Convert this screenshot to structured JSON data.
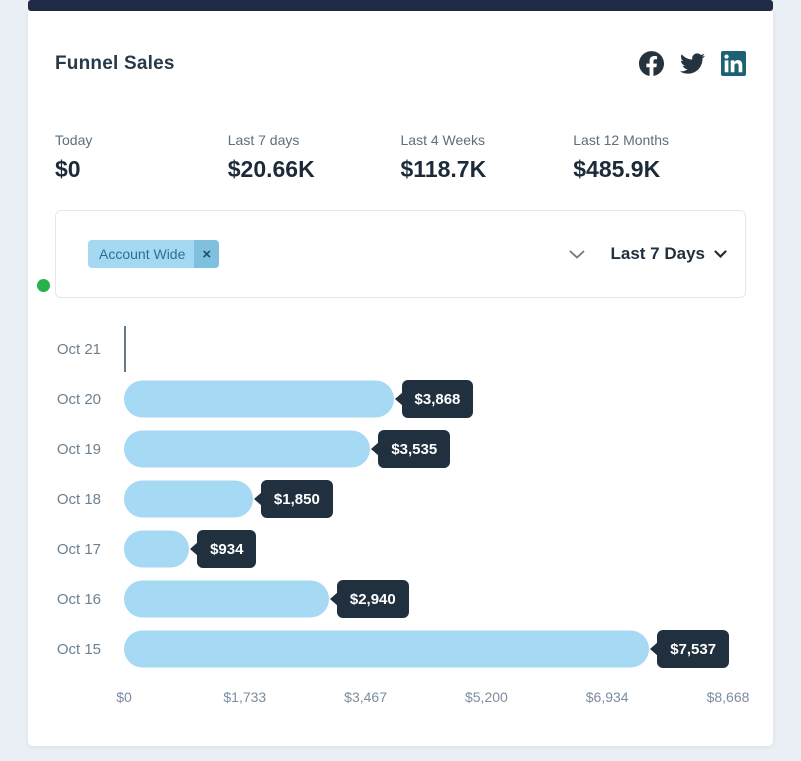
{
  "colors": {
    "page_bg": "#eaeff5",
    "card_bg": "#ffffff",
    "strip_navy": "#212b46",
    "title_text": "#263a4a",
    "stat_label": "#5d6e7e",
    "stat_value": "#1d2b39",
    "border": "#e3e8ee",
    "chip_bg": "#a5d9f1",
    "chip_text": "#2c6f96",
    "chip_remove_bg": "#7fc0de",
    "chip_remove_text": "#1d4f6e",
    "select_caret": "#6b7a8a",
    "range_text": "#22303e",
    "cat_label": "#6e8090",
    "axis_text": "#7b8da0",
    "axis_line": "#66788a",
    "bar_color": "#a6d9f3",
    "pill_bg": "#21303f",
    "pill_text": "#ffffff",
    "dot_green": "#28b14c",
    "icon_navy": "#25333f",
    "icon_linkedin": "#1d6173"
  },
  "header": {
    "title": "Funnel Sales",
    "icons": [
      "facebook-icon",
      "twitter-icon",
      "linkedin-icon"
    ]
  },
  "stats": [
    {
      "label": "Today",
      "value": "$0"
    },
    {
      "label": "Last 7 days",
      "value": "$20.66K"
    },
    {
      "label": "Last 4 Weeks",
      "value": "$118.7K"
    },
    {
      "label": "Last 12 Months",
      "value": "$485.9K"
    }
  ],
  "filters": {
    "chip_label": "Account Wide",
    "chip_remove": "×",
    "range_label": "Last 7 Days"
  },
  "chart_data": {
    "type": "bar",
    "orientation": "horizontal",
    "title": "Funnel Sales",
    "categories": [
      "Oct 21",
      "Oct 20",
      "Oct 19",
      "Oct 18",
      "Oct 17",
      "Oct 16",
      "Oct 15"
    ],
    "values": [
      0,
      3868,
      3535,
      1850,
      934,
      2940,
      7537
    ],
    "value_labels": [
      "",
      "$3,868",
      "$3,535",
      "$1,850",
      "$934",
      "$2,940",
      "$7,537"
    ],
    "x_ticks": [
      "$0",
      "$1,733",
      "$3,467",
      "$5,200",
      "$6,934",
      "$8,668"
    ],
    "xlim": [
      0,
      8668
    ],
    "grid": false,
    "legend": false
  }
}
